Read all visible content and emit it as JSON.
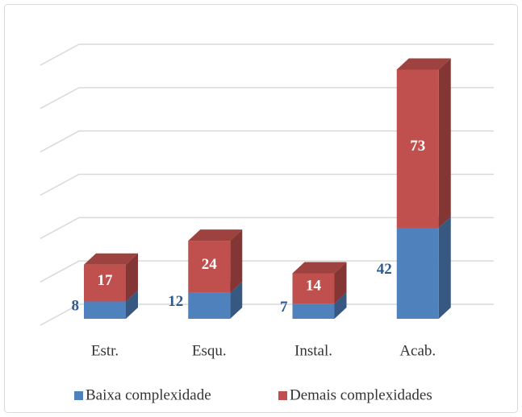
{
  "chart_data": {
    "type": "bar3d_stacked",
    "categories": [
      "Estr.",
      "Esqu.",
      "Instal.",
      "Acab."
    ],
    "series": [
      {
        "name": "Baixa complexidade",
        "color": "#4f81bd",
        "values": [
          8,
          12,
          7,
          42
        ]
      },
      {
        "name": "Demais complexidades",
        "color": "#c0504d",
        "values": [
          17,
          24,
          14,
          73
        ]
      }
    ],
    "ylim": [
      0,
      120
    ],
    "yticks": [
      0,
      20,
      40,
      60,
      80,
      100,
      120
    ],
    "grid": true,
    "legend": "bottom"
  }
}
